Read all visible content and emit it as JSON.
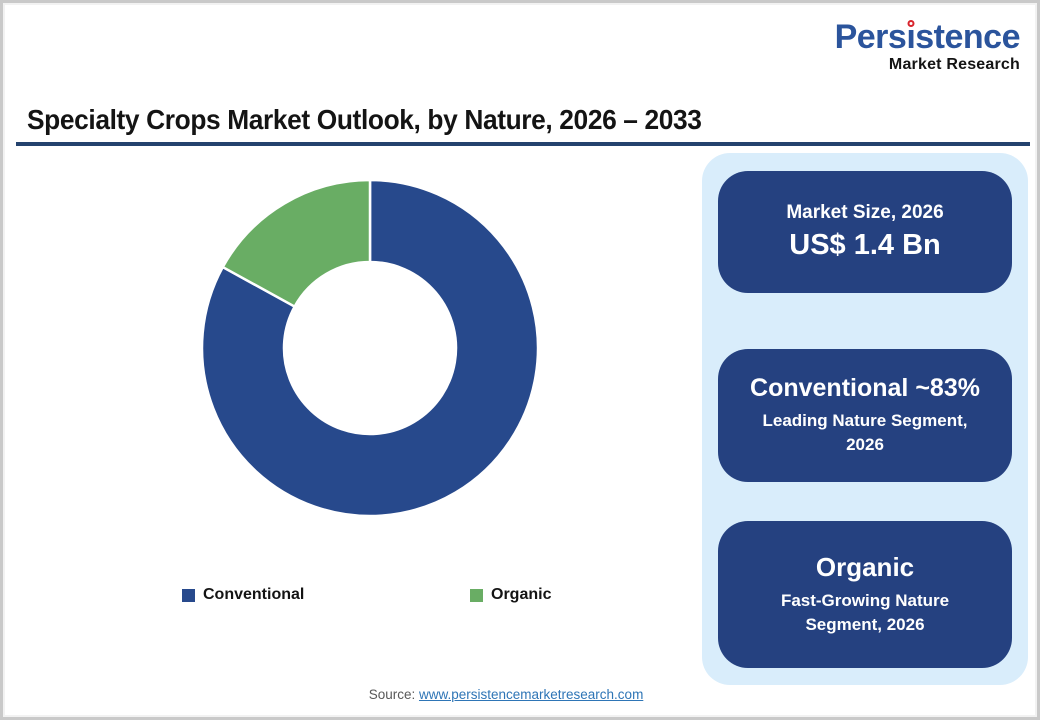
{
  "logo": {
    "wordmark": "Persistence",
    "tagline": "Market Research",
    "wordmark_color": "#2b549c",
    "dot_color": "#d8242c"
  },
  "header": {
    "title": "Specialty Crops Market Outlook, by Nature, 2026 – 2033",
    "underline_color": "#24426e"
  },
  "chart_data": {
    "type": "pie",
    "style": "donut",
    "title": "Specialty Crops Market Outlook, by Nature, 2026 – 2033",
    "categories": [
      "Conventional",
      "Organic"
    ],
    "values": [
      83,
      17
    ],
    "unit": "%",
    "colors": [
      "#27498c",
      "#69ad64"
    ],
    "inner_radius_ratio": 0.51,
    "start_angle_deg": 0,
    "direction": "clockwise",
    "legend_position": "bottom",
    "slice_gap_color": "#ffffff"
  },
  "highlights": {
    "panel_bg": "#d9edfb",
    "card_bg": "#254180",
    "cards": [
      {
        "heading": "Market Size, 2026",
        "value": "US$ 1.4 Bn"
      },
      {
        "heading": "Conventional ~83%",
        "sub": "Leading Nature Segment, 2026"
      },
      {
        "heading": "Organic",
        "sub": "Fast-Growing Nature Segment, 2026"
      }
    ]
  },
  "footer": {
    "source_label": "Source:",
    "source_link": "www.persistencemarketresearch.com",
    "link_color": "#2e75b6"
  }
}
